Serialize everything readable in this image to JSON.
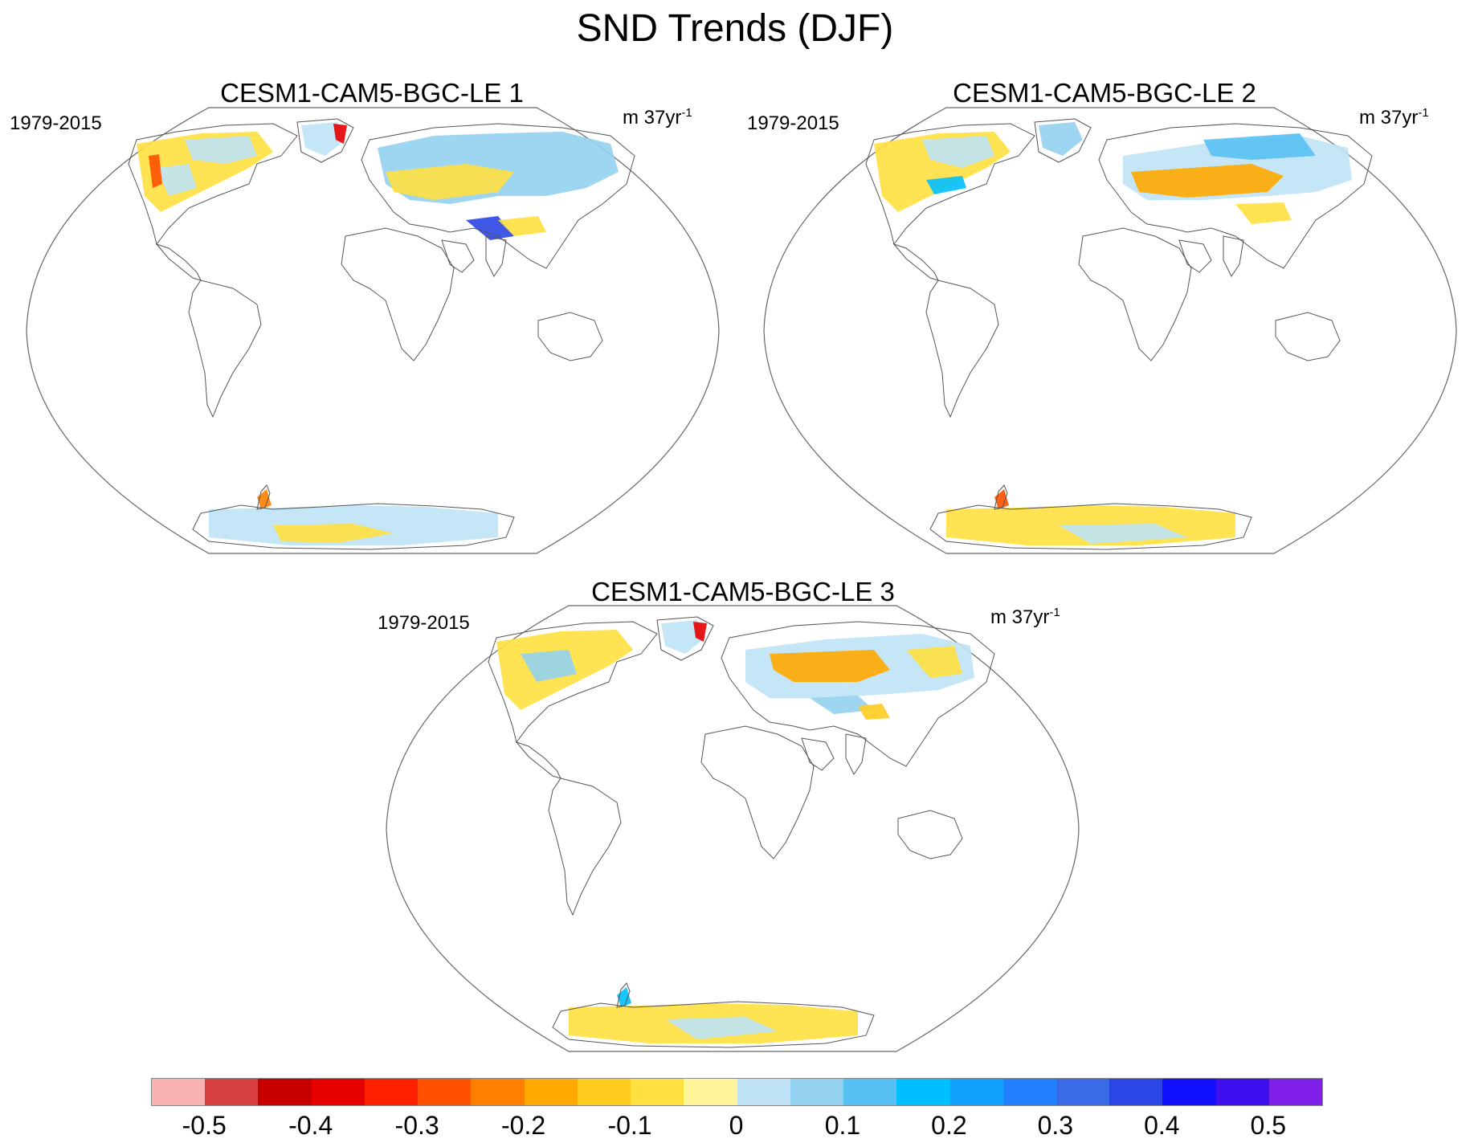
{
  "title": "SND Trends (DJF)",
  "panels": [
    {
      "title": "CESM1-CAM5-BGC-LE 1",
      "period": "1979-2015",
      "units": "m 37yr",
      "units_exp": "-1"
    },
    {
      "title": "CESM1-CAM5-BGC-LE 2",
      "period": "1979-2015",
      "units": "m 37yr",
      "units_exp": "-1"
    },
    {
      "title": "CESM1-CAM5-BGC-LE 3",
      "period": "1979-2015",
      "units": "m 37yr",
      "units_exp": "-1"
    }
  ],
  "colorbar": {
    "labels": [
      "-0.5",
      "-0.4",
      "-0.3",
      "-0.2",
      "-0.1",
      "0",
      "0.1",
      "0.2",
      "0.3",
      "0.4",
      "0.5"
    ],
    "colors": [
      "#f9b2b2",
      "#d84040",
      "#c80000",
      "#e60000",
      "#ff2000",
      "#ff5000",
      "#ff8000",
      "#ffa800",
      "#ffcc20",
      "#ffe040",
      "#fff59a",
      "#bfe3f5",
      "#94d0ef",
      "#56c0f2",
      "#00bfff",
      "#12a0ff",
      "#2280ff",
      "#3a6ae8",
      "#2a46e6",
      "#1010ff",
      "#3d10f0",
      "#8020e8"
    ]
  },
  "legend_colors": {
    "coast": "#555555",
    "frame": "#666666"
  }
}
